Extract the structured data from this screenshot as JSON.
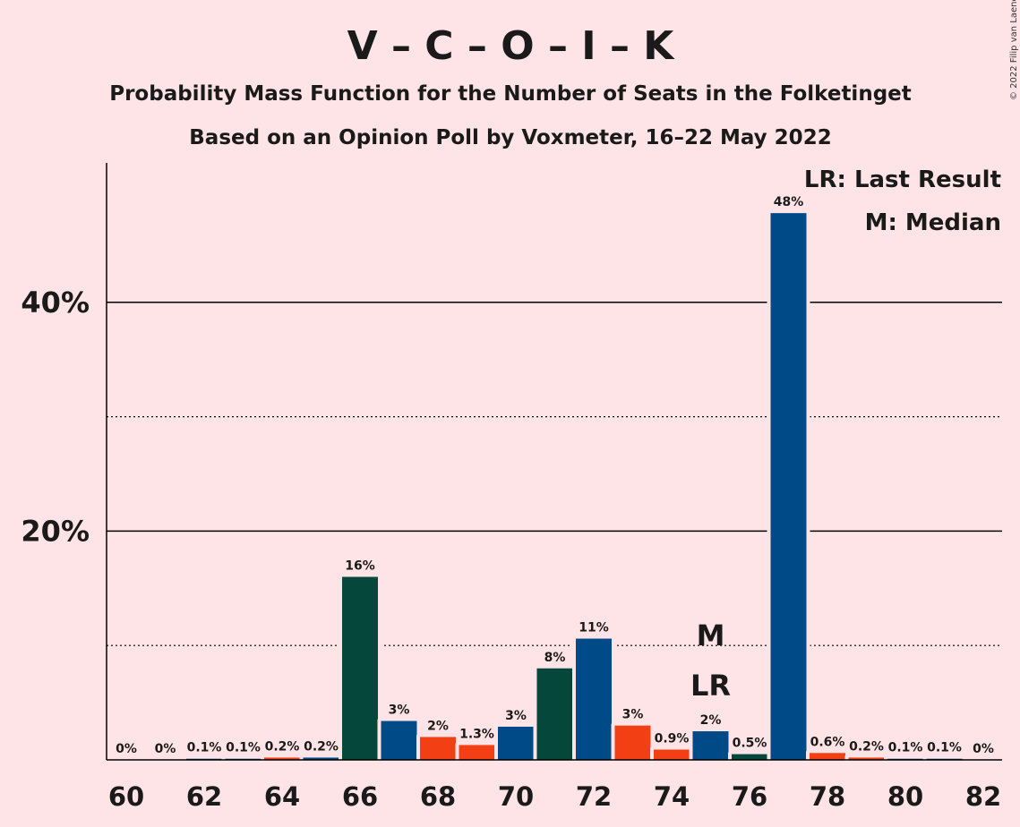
{
  "title": "V – C – O – I – K",
  "subtitle1": "Probability Mass Function for the Number of Seats in the Folketinget",
  "subtitle2": "Based on an Opinion Poll by Voxmeter, 16–22 May 2022",
  "copyright": "© 2022 Filip van Laenen",
  "legend": {
    "lr": "LR: Last Result",
    "m": "M: Median"
  },
  "chart_data": {
    "type": "bar",
    "title": "V – C – O – I – K",
    "x": [
      60,
      61,
      62,
      63,
      64,
      65,
      66,
      67,
      68,
      69,
      70,
      71,
      72,
      73,
      74,
      75,
      76,
      77,
      78,
      79,
      80,
      81,
      82
    ],
    "values": [
      0,
      0,
      0.1,
      0.1,
      0.2,
      0.2,
      16,
      3.4,
      2,
      1.3,
      2.9,
      8,
      10.6,
      3,
      0.9,
      2.5,
      0.5,
      47.8,
      0.6,
      0.2,
      0.1,
      0.1,
      0
    ],
    "labels": [
      "0%",
      "0%",
      "0.1%",
      "0.1%",
      "0.2%",
      "0.2%",
      "16%",
      "3%",
      "2%",
      "1.3%",
      "3%",
      "8%",
      "11%",
      "3%",
      "0.9%",
      "2%",
      "0.5%",
      "48%",
      "0.6%",
      "0.2%",
      "0.1%",
      "0.1%",
      "0%"
    ],
    "colors": [
      "#004a87",
      "#004a87",
      "#004a87",
      "#004a87",
      "#f24014",
      "#004a87",
      "#05473b",
      "#004a87",
      "#f24014",
      "#f24014",
      "#004a87",
      "#05473b",
      "#004a87",
      "#f24014",
      "#f24014",
      "#004a87",
      "#05473b",
      "#004a87",
      "#f24014",
      "#f24014",
      "#004a87",
      "#004a87",
      "#004a87"
    ],
    "xticks": [
      "60",
      "62",
      "64",
      "66",
      "68",
      "70",
      "72",
      "74",
      "76",
      "78",
      "80",
      "82"
    ],
    "yticks": [
      "20%",
      "40%"
    ],
    "ylim": [
      0,
      52
    ],
    "major_grid": [
      20,
      40
    ],
    "minor_grid": [
      10,
      30
    ],
    "median": 75,
    "median_label": "M",
    "last_result": 75,
    "last_result_label": "LR",
    "legend_position": "top-right"
  }
}
